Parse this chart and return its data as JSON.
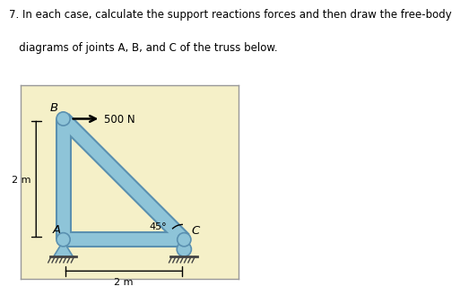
{
  "bg_color": "#f5f0c8",
  "outer_bg": "#ffffff",
  "title_line1": "7. In each case, calculate the support reactions forces and then draw the free-body",
  "title_line2": "   diagrams of joints A, B, and C of the truss below.",
  "member_color": "#8ec4d8",
  "member_edge_color": "#5a90b0",
  "joint_color": "#8ec4d8",
  "joint_edge_color": "#4a80a0",
  "force_label": "500 N",
  "angle_label": "45°",
  "dim_h_label": "2 m",
  "dim_v_label": "2 m",
  "label_A": "A",
  "label_B": "B",
  "label_C": "C",
  "text_color": "#000000",
  "fontsize_title": 8.5,
  "fontsize_labels": 8.0,
  "fontsize_dim": 8.0
}
